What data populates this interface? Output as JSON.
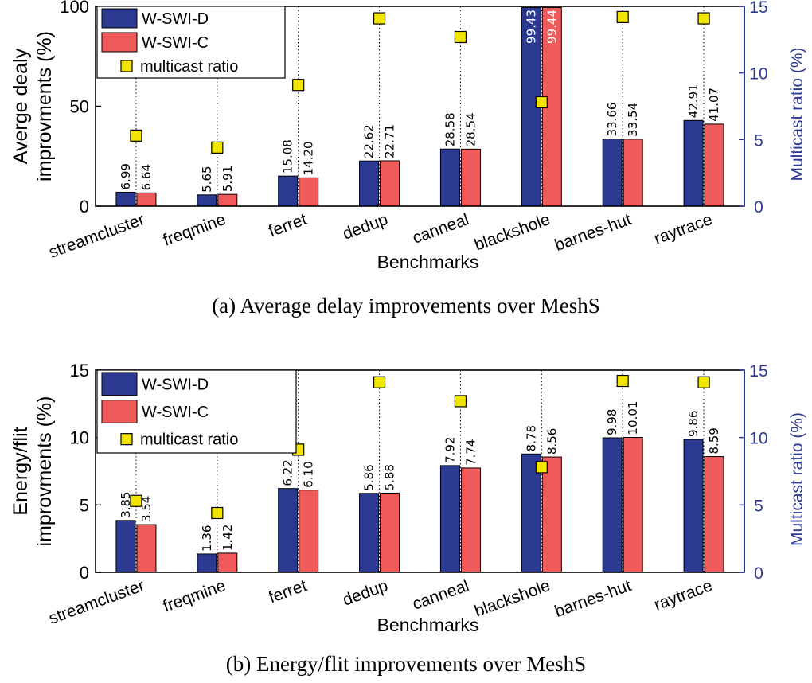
{
  "chart_data": [
    {
      "type": "bar",
      "panel": "a",
      "caption": "(a) Average delay improvements over MeshS",
      "xlabel": "Benchmarks",
      "ylabel": "Averge dealy improvments (%)",
      "ylabel_lines": [
        "Averge dealy",
        "improvments (%)"
      ],
      "ylabel2": "Multicast ratio (%)",
      "ylim": [
        0,
        100
      ],
      "yticks": [
        "0",
        "50",
        "100"
      ],
      "ylim2": [
        0,
        15
      ],
      "yticks2": [
        "0",
        "5",
        "10",
        "15"
      ],
      "categories": [
        "streamcluster",
        "freqmine",
        "ferret",
        "dedup",
        "canneal",
        "blackshole",
        "barnes-hut",
        "raytrace"
      ],
      "series": [
        {
          "name": "W-SWI-D",
          "color": "#2b3990",
          "values": [
            6.99,
            5.65,
            15.08,
            22.62,
            28.58,
            99.43,
            33.66,
            42.91
          ],
          "labels": [
            "6.99",
            "5.65",
            "15.08",
            "22.62",
            "28.58",
            "99.43",
            "33.66",
            "42.91"
          ]
        },
        {
          "name": "W-SWI-C",
          "color": "#ef5b5b",
          "values": [
            6.64,
            5.91,
            14.2,
            22.71,
            28.54,
            99.44,
            33.54,
            41.07
          ],
          "labels": [
            "6.64",
            "5.91",
            "14.20",
            "22.71",
            "28.54",
            "99.44",
            "33.54",
            "41.07"
          ]
        }
      ],
      "multicast": {
        "name": "multicast ratio",
        "color": "#f2e600",
        "values": [
          5.3,
          4.4,
          9.1,
          14.1,
          12.7,
          7.8,
          14.2,
          14.1
        ]
      },
      "legend": [
        "W-SWI-D",
        "W-SWI-C",
        "multicast ratio"
      ]
    },
    {
      "type": "bar",
      "panel": "b",
      "caption": "(b) Energy/flit improvements over MeshS",
      "xlabel": "Benchmarks",
      "ylabel": "Energy/flit improvments (%)",
      "ylabel_lines": [
        "Energy/flit",
        "improvments (%)"
      ],
      "ylabel2": "Multicast ratio (%)",
      "ylim": [
        0,
        15
      ],
      "yticks": [
        "0",
        "5",
        "10",
        "15"
      ],
      "ylim2": [
        0,
        15
      ],
      "yticks2": [
        "0",
        "5",
        "10",
        "15"
      ],
      "categories": [
        "streamcluster",
        "freqmine",
        "ferret",
        "dedup",
        "canneal",
        "blackshole",
        "barnes-hut",
        "raytrace"
      ],
      "series": [
        {
          "name": "W-SWI-D",
          "color": "#2b3990",
          "values": [
            3.85,
            1.36,
            6.22,
            5.86,
            7.92,
            8.78,
            9.98,
            9.86
          ],
          "labels": [
            "3.85",
            "1.36",
            "6.22",
            "5.86",
            "7.92",
            "8.78",
            "9.98",
            "9.86"
          ]
        },
        {
          "name": "W-SWI-C",
          "color": "#ef5b5b",
          "values": [
            3.54,
            1.42,
            6.1,
            5.88,
            7.74,
            8.56,
            10.01,
            8.59
          ],
          "labels": [
            "3.54",
            "1.42",
            "6.10",
            "5.88",
            "7.74",
            "8.56",
            "10.01",
            "8.59"
          ]
        }
      ],
      "multicast": {
        "name": "multicast ratio",
        "color": "#f2e600",
        "values": [
          5.3,
          4.4,
          9.1,
          14.1,
          12.7,
          7.8,
          14.2,
          14.1
        ]
      },
      "legend": [
        "W-SWI-D",
        "W-SWI-C",
        "multicast ratio"
      ]
    }
  ]
}
